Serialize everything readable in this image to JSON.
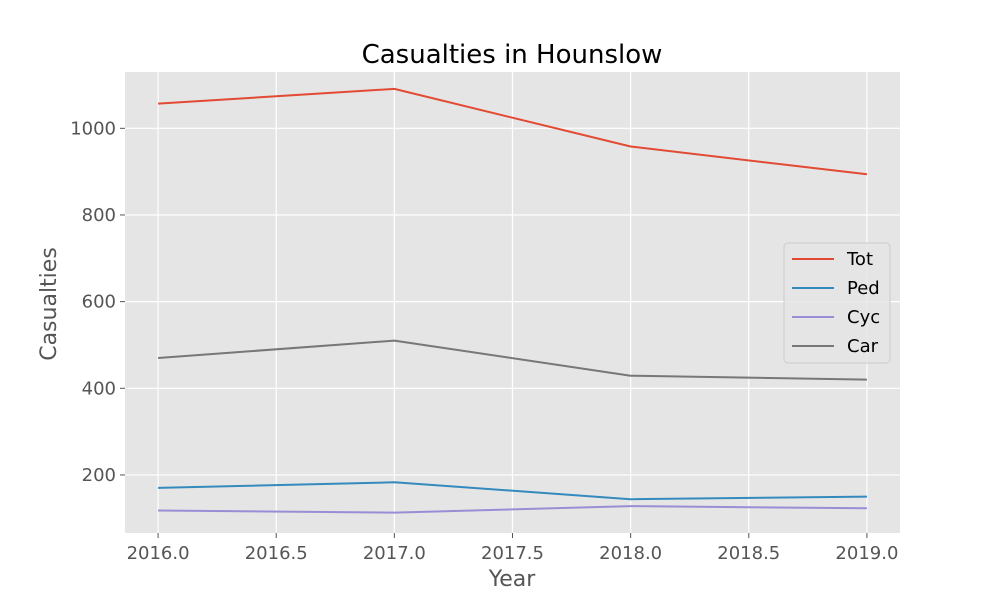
{
  "chart_data": {
    "type": "line",
    "title": "Casualties in Hounslow",
    "xlabel": "Year",
    "ylabel": "Casualties",
    "x": [
      2016,
      2017,
      2018,
      2019
    ],
    "xlim": [
      2015.86,
      2019.14
    ],
    "ylim": [
      66,
      1130
    ],
    "xticks": [
      2016.0,
      2016.5,
      2017.0,
      2017.5,
      2018.0,
      2018.5,
      2019.0
    ],
    "xtick_labels": [
      "2016.0",
      "2016.5",
      "2017.0",
      "2017.5",
      "2018.0",
      "2018.5",
      "2019.0"
    ],
    "yticks": [
      200,
      400,
      600,
      800,
      1000
    ],
    "ytick_labels": [
      "200",
      "400",
      "600",
      "800",
      "1000"
    ],
    "grid": true,
    "legend_position": "center-right",
    "series": [
      {
        "name": "Tot",
        "color": "#E24A33",
        "values": [
          1057,
          1091,
          958,
          894
        ]
      },
      {
        "name": "Ped",
        "color": "#348ABD",
        "values": [
          170,
          183,
          144,
          150
        ]
      },
      {
        "name": "Cyc",
        "color": "#988ED5",
        "values": [
          118,
          113,
          128,
          123
        ]
      },
      {
        "name": "Car",
        "color": "#777777",
        "values": [
          470,
          510,
          429,
          420
        ]
      }
    ]
  }
}
